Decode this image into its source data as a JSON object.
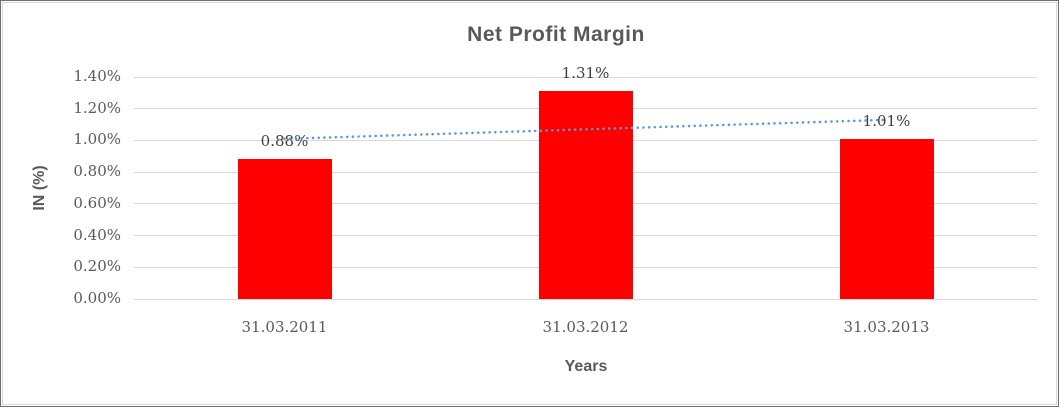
{
  "window": {
    "background": "#ffffff",
    "frame_border_color": "#6e6e6e",
    "inner_border_color": "#d9d9d9"
  },
  "chart_data": {
    "type": "bar",
    "title": "Net Profit Margin",
    "xlabel": "Years",
    "ylabel": "IN (%)",
    "categories": [
      "31.03.2011",
      "31.03.2012",
      "31.03.2013"
    ],
    "series": [
      {
        "name": "Net Profit Margin",
        "values": [
          0.88,
          1.31,
          1.01
        ],
        "data_labels": [
          "0.88%",
          "1.31%",
          "1.01%"
        ],
        "color": "#ff0000"
      }
    ],
    "y_ticks": [
      {
        "value": 0.0,
        "label": "0.00%"
      },
      {
        "value": 0.2,
        "label": "0.20%"
      },
      {
        "value": 0.4,
        "label": "0.40%"
      },
      {
        "value": 0.6,
        "label": "0.60%"
      },
      {
        "value": 0.8,
        "label": "0.80%"
      },
      {
        "value": 1.0,
        "label": "1.00%"
      },
      {
        "value": 1.2,
        "label": "1.20%"
      },
      {
        "value": 1.4,
        "label": "1.40%"
      }
    ],
    "ylim": [
      0,
      1.4
    ],
    "grid": true,
    "grid_color": "#d9d9d9",
    "legend": "none",
    "title_color": "#595959",
    "axis_text_color": "#595959",
    "data_label_color": "#3f3f3f",
    "trendline": {
      "style": "dotted",
      "color": "#5b9bd5",
      "start_value": 1.01,
      "end_value": 1.13
    }
  }
}
